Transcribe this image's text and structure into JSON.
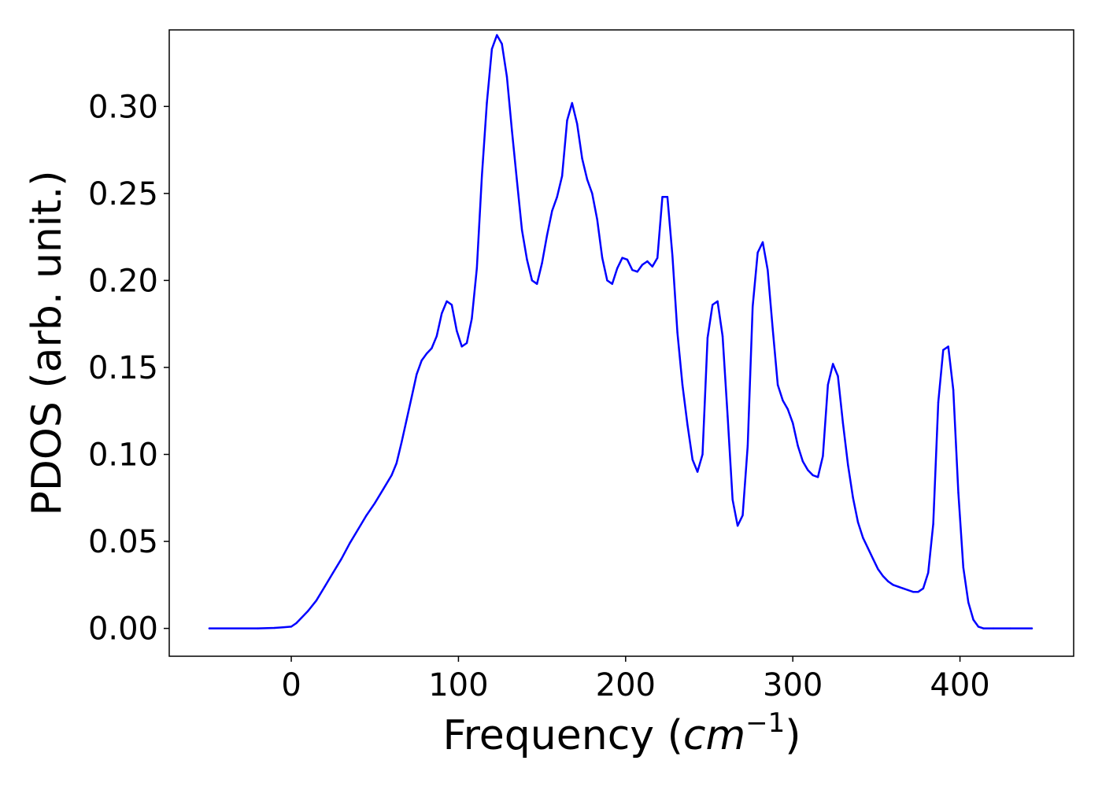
{
  "chart_data": {
    "type": "line",
    "title": "",
    "xlabel": "Frequency (cm⁻¹)",
    "xlabel_parts": {
      "prefix": "Frequency (",
      "unit": "cm",
      "exponent": "−1",
      "suffix": ")"
    },
    "ylabel": "PDOS (arb. unit.)",
    "xlim": [
      -73,
      468
    ],
    "ylim": [
      -0.016,
      0.344
    ],
    "xticks": [
      0,
      100,
      200,
      300,
      400
    ],
    "xtick_labels": [
      "0",
      "100",
      "200",
      "300",
      "400"
    ],
    "yticks": [
      0.0,
      0.05,
      0.1,
      0.15,
      0.2,
      0.25,
      0.3
    ],
    "ytick_labels": [
      "0.00",
      "0.05",
      "0.10",
      "0.15",
      "0.20",
      "0.25",
      "0.30"
    ],
    "grid": false,
    "legend": "none",
    "series": [
      {
        "color": "#0000ff",
        "x": [
          -49,
          -20,
          -10,
          -5,
          0,
          3,
          6,
          10,
          15,
          20,
          25,
          30,
          35,
          40,
          45,
          50,
          55,
          60,
          63,
          66,
          69,
          72,
          75,
          78,
          81,
          84,
          87,
          90,
          93,
          96,
          99,
          102,
          105,
          108,
          111,
          114,
          117,
          120,
          123,
          126,
          129,
          132,
          135,
          138,
          141,
          144,
          147,
          150,
          153,
          156,
          159,
          162,
          165,
          168,
          171,
          174,
          177,
          180,
          183,
          186,
          189,
          192,
          195,
          198,
          201,
          204,
          207,
          210,
          213,
          216,
          219,
          222,
          225,
          228,
          231,
          234,
          237,
          240,
          243,
          246,
          249,
          252,
          255,
          258,
          261,
          264,
          267,
          270,
          273,
          276,
          279,
          282,
          285,
          288,
          291,
          294,
          297,
          300,
          303,
          306,
          309,
          312,
          315,
          318,
          321,
          324,
          327,
          330,
          333,
          336,
          339,
          342,
          345,
          348,
          351,
          354,
          357,
          360,
          363,
          366,
          369,
          372,
          375,
          378,
          381,
          384,
          387,
          390,
          393,
          396,
          399,
          402,
          405,
          408,
          411,
          414,
          420,
          430,
          443
        ],
        "y": [
          0.0,
          0.0,
          0.0003,
          0.0006,
          0.001,
          0.003,
          0.006,
          0.01,
          0.016,
          0.024,
          0.032,
          0.04,
          0.049,
          0.057,
          0.065,
          0.072,
          0.08,
          0.088,
          0.095,
          0.107,
          0.12,
          0.133,
          0.146,
          0.154,
          0.158,
          0.161,
          0.168,
          0.181,
          0.188,
          0.186,
          0.171,
          0.162,
          0.164,
          0.178,
          0.207,
          0.26,
          0.302,
          0.333,
          0.341,
          0.336,
          0.317,
          0.286,
          0.257,
          0.229,
          0.212,
          0.2,
          0.198,
          0.21,
          0.226,
          0.24,
          0.248,
          0.26,
          0.292,
          0.302,
          0.29,
          0.27,
          0.258,
          0.25,
          0.235,
          0.213,
          0.2,
          0.198,
          0.207,
          0.213,
          0.212,
          0.206,
          0.205,
          0.209,
          0.211,
          0.208,
          0.213,
          0.248,
          0.248,
          0.214,
          0.17,
          0.14,
          0.117,
          0.097,
          0.09,
          0.1,
          0.167,
          0.186,
          0.188,
          0.168,
          0.122,
          0.074,
          0.059,
          0.065,
          0.105,
          0.185,
          0.216,
          0.222,
          0.206,
          0.172,
          0.14,
          0.131,
          0.126,
          0.118,
          0.105,
          0.096,
          0.091,
          0.088,
          0.087,
          0.099,
          0.14,
          0.152,
          0.145,
          0.118,
          0.094,
          0.075,
          0.061,
          0.052,
          0.046,
          0.04,
          0.034,
          0.03,
          0.027,
          0.025,
          0.024,
          0.023,
          0.022,
          0.021,
          0.021,
          0.023,
          0.032,
          0.06,
          0.13,
          0.16,
          0.162,
          0.137,
          0.078,
          0.035,
          0.015,
          0.005,
          0.001,
          0.0,
          0.0,
          0.0,
          0.0
        ]
      }
    ]
  }
}
